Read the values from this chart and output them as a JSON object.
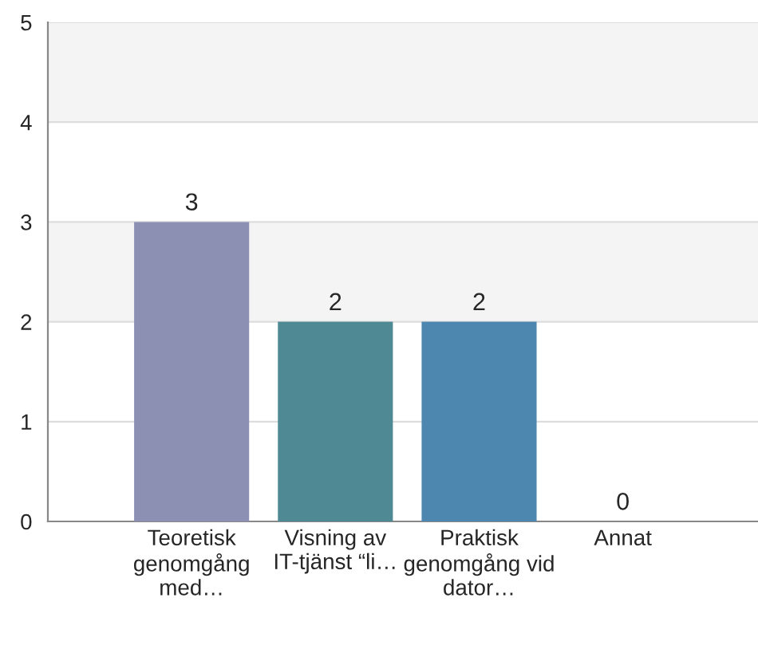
{
  "chart_data": {
    "type": "bar",
    "categories": [
      "Teoretisk genomgång med…",
      "Visning av IT-tjänst “li…",
      "Praktisk genomgång vid dator…",
      "Annat"
    ],
    "values": [
      3,
      2,
      2,
      0
    ],
    "colors": [
      "#8c90b2",
      "#4f8a94",
      "#4d86ae",
      null
    ],
    "data_labels": true,
    "ylim": [
      0,
      5
    ],
    "yticks": [
      0,
      1,
      2,
      3,
      4,
      5
    ],
    "bands": [
      {
        "axis": "y",
        "from": 2,
        "to": 3,
        "color": "#f4f4f4"
      },
      {
        "axis": "y",
        "from": 4,
        "to": 5,
        "color": "#f4f4f4"
      }
    ],
    "grid": "y"
  }
}
